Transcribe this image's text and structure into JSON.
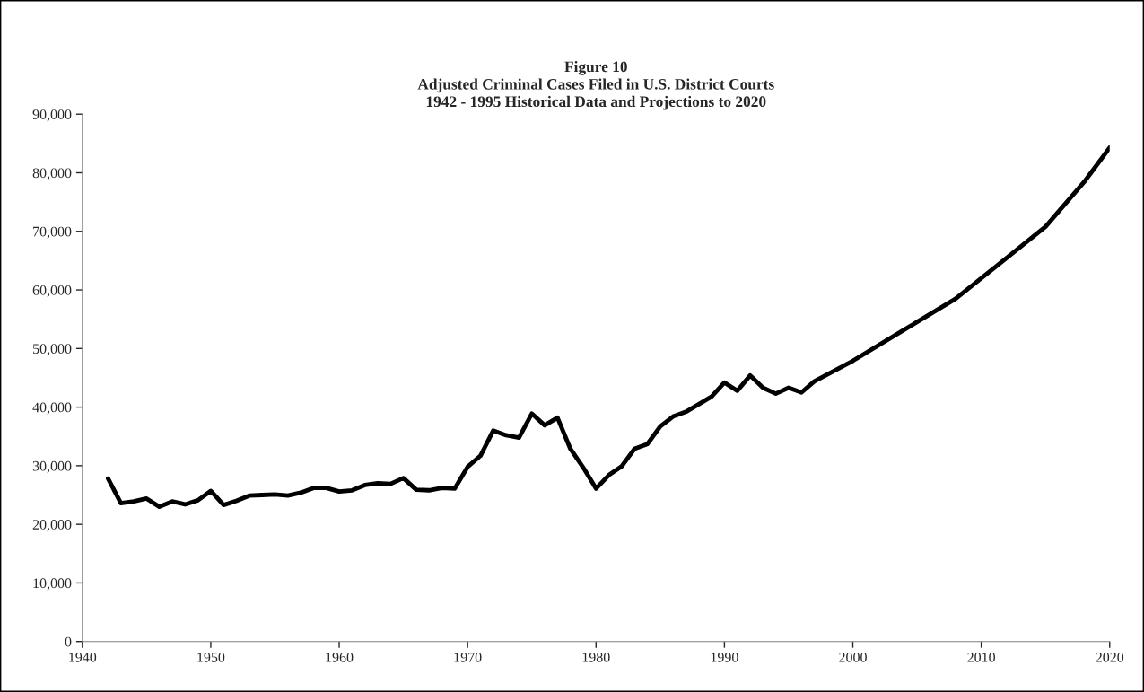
{
  "chart_data": {
    "type": "line",
    "title": "Figure 10\nAdjusted Criminal Cases Filed in U.S. District Courts\n1942 - 1995 Historical Data and Projections to 2020",
    "x": [
      1942,
      1943,
      1944,
      1945,
      1946,
      1947,
      1948,
      1949,
      1950,
      1951,
      1952,
      1953,
      1954,
      1955,
      1956,
      1957,
      1958,
      1959,
      1960,
      1961,
      1962,
      1963,
      1964,
      1965,
      1966,
      1967,
      1968,
      1969,
      1970,
      1971,
      1972,
      1973,
      1974,
      1975,
      1976,
      1977,
      1978,
      1979,
      1980,
      1981,
      1982,
      1983,
      1984,
      1985,
      1986,
      1987,
      1988,
      1989,
      1990,
      1991,
      1992,
      1993,
      1994,
      1995,
      1996,
      1997,
      2000,
      2004,
      2008,
      2012,
      2015,
      2018,
      2020
    ],
    "series": [
      {
        "color": "#000000",
        "values": [
          27800,
          23600,
          23900,
          24400,
          23000,
          23900,
          23400,
          24100,
          25700,
          23300,
          24000,
          24900,
          25000,
          25100,
          24900,
          25400,
          26200,
          26200,
          25600,
          25800,
          26700,
          27000,
          26900,
          27900,
          25900,
          25800,
          26200,
          26100,
          29800,
          31700,
          36000,
          35200,
          34800,
          38900,
          36900,
          38200,
          32900,
          29700,
          26100,
          28400,
          29900,
          32900,
          33700,
          36700,
          38400,
          39200,
          40500,
          41800,
          44200,
          42800,
          45400,
          43300,
          42300,
          43300,
          42500,
          44400,
          47900,
          53200,
          58500,
          65500,
          70800,
          78400,
          84300
        ]
      }
    ],
    "xlim": [
      1940,
      2020
    ],
    "xticks": [
      1940,
      1950,
      1960,
      1970,
      1980,
      1990,
      2000,
      2010,
      2020
    ],
    "ylim": [
      0,
      90000
    ],
    "yticks": [
      {
        "value": 0,
        "label": "0"
      },
      {
        "value": 10000,
        "label": "10,000"
      },
      {
        "value": 20000,
        "label": "20,000"
      },
      {
        "value": 30000,
        "label": "30,000"
      },
      {
        "value": 40000,
        "label": "40,000"
      },
      {
        "value": 50000,
        "label": "50,000"
      },
      {
        "value": 60000,
        "label": "60,000"
      },
      {
        "value": 70000,
        "label": "70,000"
      },
      {
        "value": 80000,
        "label": "80,000"
      },
      {
        "value": 90000,
        "label": "90,000"
      }
    ],
    "grid": false,
    "marker": "none",
    "line_style": "solid"
  }
}
